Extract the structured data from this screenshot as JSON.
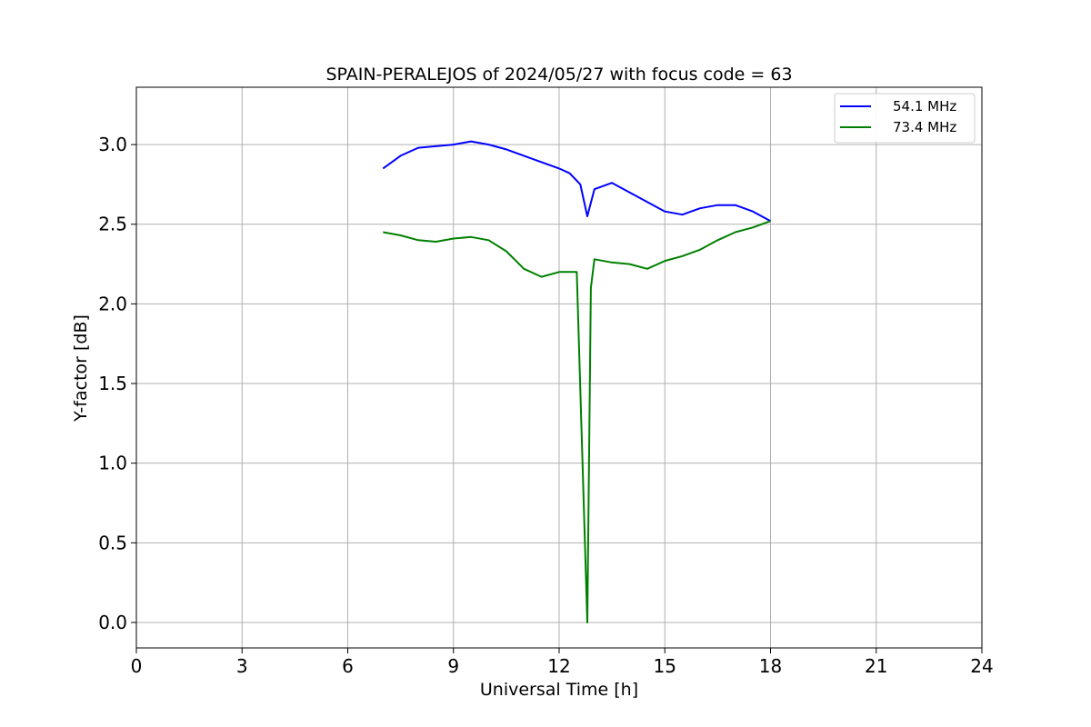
{
  "chart_data": {
    "type": "line",
    "title": "SPAIN-PERALEJOS of 2024/05/27 with focus code = 63",
    "xlabel": "Universal Time [h]",
    "ylabel": "Y-factor [dB]",
    "xlim": [
      0,
      24
    ],
    "ylim": [
      -0.16,
      3.36
    ],
    "xticks": [
      0,
      3,
      6,
      9,
      12,
      15,
      18,
      21,
      24
    ],
    "xtick_labels": [
      "0",
      "3",
      "6",
      "9",
      "12",
      "15",
      "18",
      "21",
      "24"
    ],
    "yticks": [
      0.0,
      0.5,
      1.0,
      1.5,
      2.0,
      2.5,
      3.0
    ],
    "ytick_labels": [
      "0.0",
      "0.5",
      "1.0",
      "1.5",
      "2.0",
      "2.5",
      "3.0"
    ],
    "grid": true,
    "legend_position": "top-right",
    "series": [
      {
        "name": "54.1 MHz",
        "color": "#0000ff",
        "x": [
          7.0,
          7.5,
          8.0,
          8.5,
          9.0,
          9.5,
          10.0,
          10.5,
          11.0,
          11.5,
          12.0,
          12.3,
          12.6,
          12.8,
          13.0,
          13.5,
          14.0,
          14.5,
          15.0,
          15.5,
          16.0,
          16.5,
          17.0,
          17.5,
          18.0
        ],
        "y": [
          2.85,
          2.93,
          2.98,
          2.99,
          3.0,
          3.02,
          3.0,
          2.97,
          2.93,
          2.89,
          2.85,
          2.82,
          2.75,
          2.55,
          2.72,
          2.76,
          2.7,
          2.64,
          2.58,
          2.56,
          2.6,
          2.62,
          2.62,
          2.58,
          2.52
        ]
      },
      {
        "name": "73.4 MHz",
        "color": "#008000",
        "x": [
          7.0,
          7.5,
          8.0,
          8.5,
          9.0,
          9.5,
          10.0,
          10.5,
          11.0,
          11.5,
          12.0,
          12.5,
          12.8,
          12.9,
          13.0,
          13.5,
          14.0,
          14.5,
          15.0,
          15.5,
          16.0,
          16.5,
          17.0,
          17.5,
          18.0
        ],
        "y": [
          2.45,
          2.43,
          2.4,
          2.39,
          2.41,
          2.42,
          2.4,
          2.33,
          2.22,
          2.17,
          2.2,
          2.2,
          0.0,
          2.1,
          2.28,
          2.26,
          2.25,
          2.22,
          2.27,
          2.3,
          2.34,
          2.4,
          2.45,
          2.48,
          2.52
        ]
      }
    ]
  }
}
